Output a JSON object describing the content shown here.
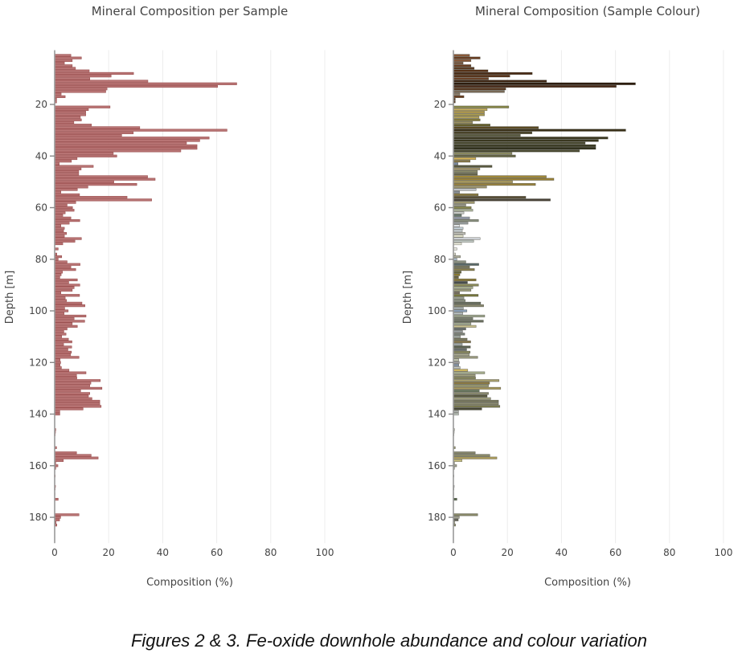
{
  "caption": "Figures 2 & 3. Fe-oxide downhole abundance and colour variation",
  "chart_data": [
    {
      "type": "bar",
      "orientation": "horizontal",
      "title": "Mineral Composition per Sample",
      "xlabel": "Composition (%)",
      "ylabel": "Depth [m]",
      "xlim": [
        0,
        100
      ],
      "ylim": [
        190,
        0
      ],
      "x_ticks": [
        "0",
        "20",
        "40",
        "60",
        "80",
        "100"
      ],
      "y_ticks": [
        "20",
        "40",
        "60",
        "80",
        "100",
        "120",
        "140",
        "160",
        "180"
      ],
      "grid": "vertical",
      "bar_color": "#b87474",
      "bar_edge_color": "#9a4e4e"
    },
    {
      "type": "bar",
      "orientation": "horizontal",
      "title": "Mineral Composition (Sample Colour)",
      "xlabel": "Composition (%)",
      "ylabel": "Depth [m]",
      "xlim": [
        0,
        100
      ],
      "ylim": [
        190,
        0
      ],
      "x_ticks": [
        "0",
        "20",
        "40",
        "60",
        "80",
        "100"
      ],
      "y_ticks": [
        "20",
        "40",
        "60",
        "80",
        "100",
        "120",
        "140",
        "160",
        "180"
      ],
      "grid": "vertical",
      "bar_colors_note_source": "per-sample colour",
      "bar_edge_color": "#444444"
    }
  ],
  "samples": {
    "depth_start": 1,
    "depth_step": 1,
    "values": [
      6.0,
      9.9,
      6.5,
      3.6,
      6.5,
      7.7,
      12.8,
      29.2,
      20.9,
      13.0,
      34.5,
      67.4,
      60.3,
      19.4,
      18.9,
      2.4,
      3.9,
      0.7,
      0.7,
      0,
      20.5,
      12.5,
      11.5,
      11.5,
      9.5,
      9.9,
      7.1,
      13.6,
      31.5,
      63.8,
      29.1,
      24.8,
      57.2,
      53.7,
      48.8,
      52.7,
      52.7,
      46.7,
      21.7,
      23.0,
      8.3,
      6.2,
      1.7,
      14.3,
      9.8,
      8.9,
      8.9,
      34.4,
      37.2,
      21.9,
      30.4,
      12.3,
      8.4,
      2.3,
      9.2,
      26.8,
      35.9,
      7.8,
      4.6,
      6.6,
      7.2,
      3.9,
      3.0,
      6.0,
      9.3,
      5.4,
      2.3,
      3.6,
      3.3,
      4.4,
      3.6,
      9.9,
      7.5,
      3.0,
      0,
      1.3,
      0,
      0.8,
      2.6,
      1.3,
      4.6,
      9.4,
      6.0,
      7.8,
      2.9,
      2.4,
      1.9,
      8.4,
      5.2,
      9.3,
      7.2,
      6.5,
      2.3,
      9.2,
      3.9,
      4.4,
      10.1,
      11.2,
      3.7,
      5.0,
      3.5,
      11.6,
      7.2,
      11.1,
      6.5,
      8.4,
      4.6,
      3.4,
      4.2,
      2.6,
      5.1,
      6.4,
      3.3,
      6.3,
      4.9,
      6.2,
      5.9,
      9.0,
      2.0,
      2.2,
      2.0,
      2.5,
      5.3,
      11.6,
      8.1,
      8.2,
      16.9,
      13.4,
      13.0,
      17.5,
      9.6,
      13.0,
      12.5,
      13.8,
      16.7,
      16.7,
      17.2,
      10.5,
      1.9,
      1.9,
      0,
      0,
      0,
      0,
      0,
      0.4,
      0.3,
      0.2,
      0,
      0,
      0,
      0,
      0.7,
      0,
      8.1,
      13.5,
      16.1,
      3.2,
      0.4,
      1.2,
      0.4,
      0,
      0,
      0.2,
      0,
      0,
      0,
      0.3,
      0.2,
      0,
      0.1,
      0,
      1.3,
      0,
      0,
      0,
      0,
      0,
      9.0,
      2.2,
      1.8,
      0.5,
      0.8
    ],
    "colors": [
      "#8a5a3a",
      "#6b3f22",
      "#8a5a3a",
      "#7a5a42",
      "#6b3f22",
      "#5a3a22",
      "#5a3318",
      "#4a2a14",
      "#5a3318",
      "#6b4228",
      "#3d2512",
      "#2e1c0e",
      "#4a2a18",
      "#5a3a22",
      "#7a6a58",
      "#8a7a66",
      "#6b3f22",
      "#5a3a22",
      "#5a3a22",
      "",
      "#8a8a4a",
      "#c8b060",
      "#b8a050",
      "#a89a50",
      "#b0a058",
      "#8a8040",
      "#9a9060",
      "#6a6430",
      "#5a4a22",
      "#3a3018",
      "#4a4428",
      "#5a5a40",
      "#3e3a22",
      "#3a3820",
      "#4a4a30",
      "#3a3a22",
      "#2e2e1a",
      "#4a4a30",
      "#8a8a60",
      "#6a6a4a",
      "#d4b458",
      "#8a7a4a",
      "#7a8aa0",
      "#5a5a40",
      "#a89a70",
      "#8a8a6a",
      "#6a6a50",
      "#a08838",
      "#9a8238",
      "#b0a060",
      "#9a8440",
      "#a09870",
      "#c0c4c8",
      "#8a9098",
      "#8a7a40",
      "#5a5038",
      "#4a4438",
      "#a09a70",
      "#9a9a8a",
      "#8a8a50",
      "#b0b8a0",
      "#c8ccc8",
      "#6a7a70",
      "#9aa0b0",
      "#8a9080",
      "#9aa0a0",
      "#e0e4e8",
      "#c8d4dc",
      "#d0d8dc",
      "#c0c0b8",
      "#e8e8d0",
      "#d0d4d8",
      "#c4ccc8",
      "#f0f0e0",
      "",
      "#e8e8e0",
      "",
      "#e0e0d0",
      "#b0b0a0",
      "#b0c0d0",
      "#8a9080",
      "#5a6a6a",
      "#7a7a60",
      "#8a8050",
      "#6a6a40",
      "#8a7a30",
      "#6a6440",
      "#8a7a3a",
      "#4a5050",
      "#8a8a5a",
      "#a8b090",
      "#a0a080",
      "#7a7060",
      "#7a7a40",
      "#9aa090",
      "#8a9080",
      "#6a7060",
      "#8a8a70",
      "#a8b0b0",
      "#8aa0b8",
      "#b8c0c0",
      "#a0a890",
      "#7a8070",
      "#6a7060",
      "#a0a890",
      "#c8c090",
      "#6a7070",
      "#9aa0a0",
      "#7a8078",
      "#a0a8a0",
      "#7a7a60",
      "#8a7a50",
      "#a0a8a8",
      "#5a6050",
      "#6a7070",
      "#8a8a60",
      "#a8a890",
      "#9a9a80",
      "#c0c4b0",
      "#a0a0a0",
      "#8a9ab0",
      "#c0c4c0",
      "#d0b860",
      "#a8b090",
      "#a0a080",
      "#8a8a60",
      "#a8a070",
      "#8a7840",
      "#9a9a70",
      "#a89a60",
      "#6a7a60",
      "#8a8a70",
      "#5a5a40",
      "#a0a080",
      "#7a7a60",
      "#8a8a70",
      "#7a7a50",
      "#4a4a38",
      "#b0b4b0",
      "#c0c8c0",
      "",
      "",
      "",
      "",
      "",
      "#d8d8c8",
      "#e0e0d0",
      "#e0e0d0",
      "",
      "",
      "",
      "",
      "#9a9a70",
      "",
      "#8a8a70",
      "#8a8a6a",
      "#b0a060",
      "#c8c080",
      "#a0a090",
      "#a0a090",
      "#c0c0b0",
      "",
      "",
      "#a0a0a0",
      "",
      "",
      "",
      "#a0a0a0",
      "#a0a0a0",
      "",
      "#c0c0c0",
      "",
      "#5a6a50",
      "",
      "",
      "",
      "",
      "",
      "#8a8a6a",
      "#a0a090",
      "#6a6a60",
      "#c0c0a0",
      "#8a8a6a"
    ]
  }
}
